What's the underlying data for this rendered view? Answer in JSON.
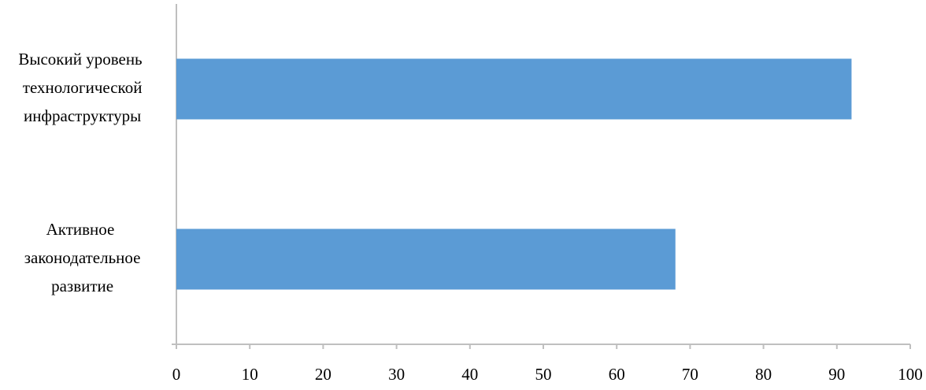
{
  "chart_data": {
    "type": "barh",
    "categories": [
      "Высокий уровень технологической инфраструктуры",
      "Активное законодательное развитие"
    ],
    "values": [
      92,
      68
    ],
    "color": "#5b9bd5",
    "xlim": [
      0,
      100
    ],
    "xticks": [
      0,
      10,
      20,
      30,
      40,
      50,
      60,
      70,
      80,
      90,
      100
    ],
    "grid": false
  }
}
